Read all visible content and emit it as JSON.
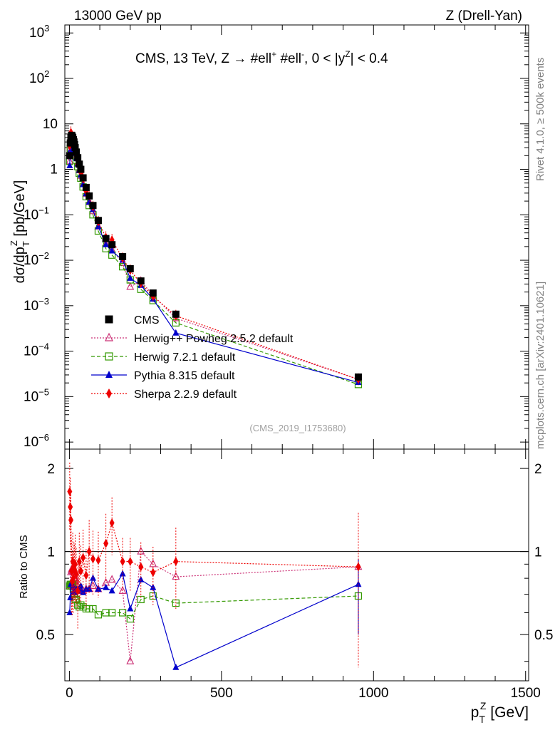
{
  "header": {
    "left": "13000 GeV pp",
    "right": "Z (Drell-Yan)"
  },
  "side_text": {
    "rivet": "Rivet 4.1.0, ≥ 500k events",
    "source": "mcplots.cern.ch [arXiv:2401.10621]"
  },
  "chart_data": {
    "type": "line",
    "title": "CMS, 13 TeV, Z →  #ell⁺ #ell⁻, 0 < |y^Z| < 0.4",
    "title_parts": {
      "main": "CMS, 13 TeV, Z →  #ell",
      "sup1": "+",
      "mid": " #ell",
      "sup2": "-",
      "mid2": ", 0 < |y",
      "sup3": "Z",
      "tail": "| < 0.4"
    },
    "watermark": "(CMS_2019_I1753680)",
    "xlabel": "p_T^Z [GeV]",
    "xlabel_parts": {
      "main": "p",
      "sub": "T",
      "sup": "Z",
      "unit": " [GeV]"
    },
    "ylabel": "dσ/dp_T^Z [pb/GeV]",
    "ylabel_parts": {
      "pre": "dσ/dp",
      "sub": "T",
      "sup": "Z",
      "unit": " [pb/GeV]"
    },
    "ratio_ylabel": "Ratio to CMS",
    "xlim": [
      -15,
      1510
    ],
    "ylim": [
      7e-07,
      1500
    ],
    "ratio_ylim": [
      0.34,
      2.35
    ],
    "x_ticks": [
      0,
      500,
      1000,
      1500
    ],
    "y_ticks_exp": [
      -6,
      -5,
      -4,
      -3,
      -2,
      -1,
      0,
      1,
      2,
      3
    ],
    "ratio_ticks": [
      0.5,
      1,
      2
    ],
    "legend": {
      "position": "lower-left",
      "entries": [
        "CMS",
        "Herwig++ Powheg 2.5.2 default",
        "Herwig 7.2.1 default",
        "Pythia 8.315 default",
        "Sherpa 2.2.9 default"
      ]
    },
    "x": [
      1,
      3,
      5,
      7,
      9,
      11,
      13,
      15,
      17,
      19,
      22.5,
      27.5,
      32.5,
      37.5,
      45,
      55,
      65,
      77.5,
      95,
      120,
      140,
      175,
      200,
      235,
      275,
      350,
      950
    ],
    "series": [
      {
        "name": "CMS",
        "color": "#000000",
        "marker": "square-filled",
        "line": "none",
        "values": [
          2.0,
          3.8,
          5.0,
          5.6,
          5.4,
          5.0,
          4.5,
          4.0,
          3.5,
          3.0,
          2.4,
          1.8,
          1.3,
          1.0,
          0.65,
          0.4,
          0.26,
          0.16,
          0.075,
          0.03,
          0.022,
          0.012,
          0.0065,
          0.0035,
          0.0019,
          0.00065,
          2.7e-05
        ]
      },
      {
        "name": "Herwig++ Powheg 2.5.2 default",
        "color": "#cc3377",
        "marker": "triangle-open",
        "line": "dotted",
        "values": [
          1.5,
          2.9,
          4.2,
          4.8,
          4.6,
          4.2,
          3.7,
          3.2,
          2.8,
          2.4,
          1.9,
          1.35,
          0.95,
          0.72,
          0.47,
          0.29,
          0.19,
          0.12,
          0.055,
          0.023,
          0.017,
          0.0087,
          0.0026,
          0.0035,
          0.0017,
          0.00053,
          2.4e-05
        ]
      },
      {
        "name": "Herwig 7.2.1 default",
        "color": "#339900",
        "marker": "square-open",
        "line": "dashed",
        "values": [
          1.5,
          2.9,
          3.8,
          4.2,
          4.1,
          3.8,
          3.3,
          2.8,
          2.4,
          2.0,
          1.6,
          1.15,
          0.82,
          0.64,
          0.41,
          0.25,
          0.16,
          0.1,
          0.044,
          0.018,
          0.013,
          0.0072,
          0.0037,
          0.0023,
          0.0013,
          0.00042,
          1.85e-05
        ]
      },
      {
        "name": "Pythia 8.315 default",
        "color": "#0000cc",
        "marker": "triangle-filled",
        "line": "solid",
        "values": [
          1.2,
          2.6,
          3.8,
          4.3,
          4.1,
          3.7,
          3.2,
          2.9,
          2.5,
          2.2,
          1.75,
          1.3,
          0.95,
          0.75,
          0.46,
          0.29,
          0.19,
          0.13,
          0.055,
          0.022,
          0.016,
          0.01,
          0.004,
          0.0028,
          0.0014,
          0.00025,
          2.05e-05
        ]
      },
      {
        "name": "Sherpa 2.2.9 default",
        "color": "#ee0000",
        "marker": "diamond-filled",
        "line": "dotted",
        "values": [
          3.3,
          5.5,
          6.5,
          4.8,
          4.2,
          4.6,
          3.6,
          3.5,
          3.0,
          2.7,
          2.0,
          1.3,
          1.2,
          0.85,
          0.62,
          0.33,
          0.26,
          0.15,
          0.07,
          0.032,
          0.028,
          0.011,
          0.006,
          0.0031,
          0.0016,
          0.0006,
          2.4e-05
        ]
      }
    ],
    "ratios": [
      {
        "name": "Herwig++ Powheg 2.5.2 default",
        "values": [
          0.75,
          0.76,
          0.84,
          0.86,
          0.85,
          0.84,
          0.82,
          0.8,
          0.8,
          0.8,
          0.79,
          0.75,
          0.73,
          0.72,
          0.72,
          0.73,
          0.73,
          0.75,
          0.73,
          0.77,
          0.79,
          0.72,
          0.4,
          1.0,
          0.9,
          0.81,
          0.88
        ]
      },
      {
        "name": "Herwig 7.2.1 default",
        "values": [
          0.75,
          0.76,
          0.76,
          0.75,
          0.76,
          0.76,
          0.73,
          0.7,
          0.69,
          0.67,
          0.67,
          0.64,
          0.63,
          0.64,
          0.63,
          0.62,
          0.62,
          0.62,
          0.59,
          0.6,
          0.6,
          0.6,
          0.57,
          0.67,
          0.69,
          0.65,
          0.69
        ]
      },
      {
        "name": "Pythia 8.315 default",
        "values": [
          0.6,
          0.68,
          0.76,
          0.77,
          0.76,
          0.74,
          0.71,
          0.72,
          0.71,
          0.73,
          0.73,
          0.72,
          0.73,
          0.75,
          0.71,
          0.73,
          0.73,
          0.8,
          0.73,
          0.74,
          0.72,
          0.83,
          0.62,
          0.79,
          0.74,
          0.38,
          0.76
        ]
      },
      {
        "name": "Sherpa 2.2.9 default",
        "values": [
          1.65,
          1.45,
          1.3,
          0.85,
          0.78,
          0.92,
          0.8,
          0.88,
          0.86,
          0.9,
          0.83,
          0.72,
          0.92,
          0.85,
          0.95,
          0.82,
          1.0,
          0.94,
          0.93,
          1.07,
          1.27,
          0.92,
          0.92,
          0.88,
          0.84,
          0.92,
          0.88
        ]
      }
    ],
    "ratio_errors_sherpa": [
      0.45,
      0.4,
      0.35,
      0.25,
      0.2,
      0.25,
      0.2,
      0.2,
      0.2,
      0.25,
      0.2,
      0.2,
      0.25,
      0.2,
      0.25,
      0.2,
      0.3,
      0.25,
      0.25,
      0.3,
      0.3,
      0.2,
      0.2,
      0.2,
      0.2,
      0.3,
      0.5
    ]
  }
}
